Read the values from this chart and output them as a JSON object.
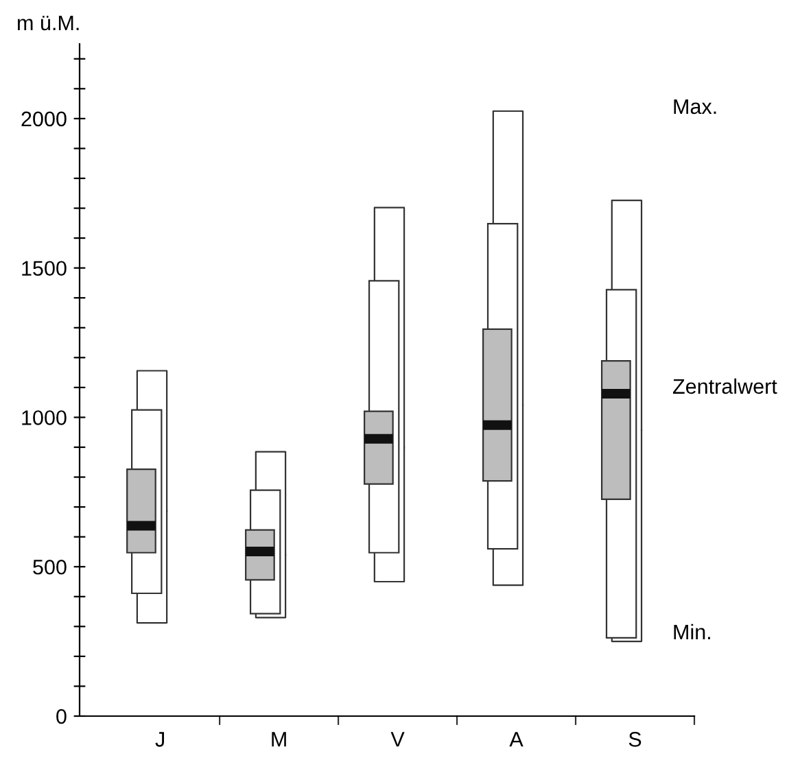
{
  "chart_data": {
    "type": "box",
    "ylabel": "m ü.M.",
    "categories": [
      "J",
      "M",
      "V",
      "A",
      "S"
    ],
    "boxes": [
      {
        "low": 312,
        "q1": 547,
        "median": 637,
        "q3": 826,
        "high": 1156
      },
      {
        "low": 330,
        "q1": 456,
        "median": 551,
        "q3": 623,
        "high": 885
      },
      {
        "low": 450,
        "q1": 777,
        "median": 928,
        "q3": 1020,
        "high": 1702
      },
      {
        "low": 438,
        "q1": 787,
        "median": 974,
        "q3": 1295,
        "high": 2025
      },
      {
        "low": 250,
        "q1": 726,
        "median": 1079,
        "q3": 1189,
        "high": 1726
      }
    ],
    "series": [
      {
        "type": "bar",
        "color": "#ffffff",
        "base": [
          411,
          343,
          547,
          560,
          262
        ],
        "values": [
          614,
          413,
          910,
          1088,
          1165
        ]
      }
    ],
    "annotations": [
      "Max.",
      "Zentralwert",
      "Min."
    ],
    "ylim": [
      0,
      2250
    ],
    "yticks": [
      0,
      {
        "value": 100,
        "label": null
      },
      {
        "value": 200,
        "label": null
      },
      {
        "value": 300,
        "label": null
      },
      {
        "value": 400,
        "label": null
      },
      500,
      {
        "value": 600,
        "label": null
      },
      {
        "value": 700,
        "label": null
      },
      {
        "value": 800,
        "label": null
      },
      {
        "value": 900,
        "label": null
      },
      1000,
      {
        "value": 1100,
        "label": null
      },
      {
        "value": 1200,
        "label": null
      },
      {
        "value": 1300,
        "label": null
      },
      {
        "value": 1400,
        "label": null
      },
      1500,
      {
        "value": 1600,
        "label": null
      },
      {
        "value": 1700,
        "label": null
      },
      {
        "value": 1800,
        "label": null
      },
      {
        "value": 1900,
        "label": null
      },
      2000,
      {
        "value": 2100,
        "label": null
      },
      {
        "value": 2200,
        "label": null
      }
    ],
    "grid": false
  }
}
